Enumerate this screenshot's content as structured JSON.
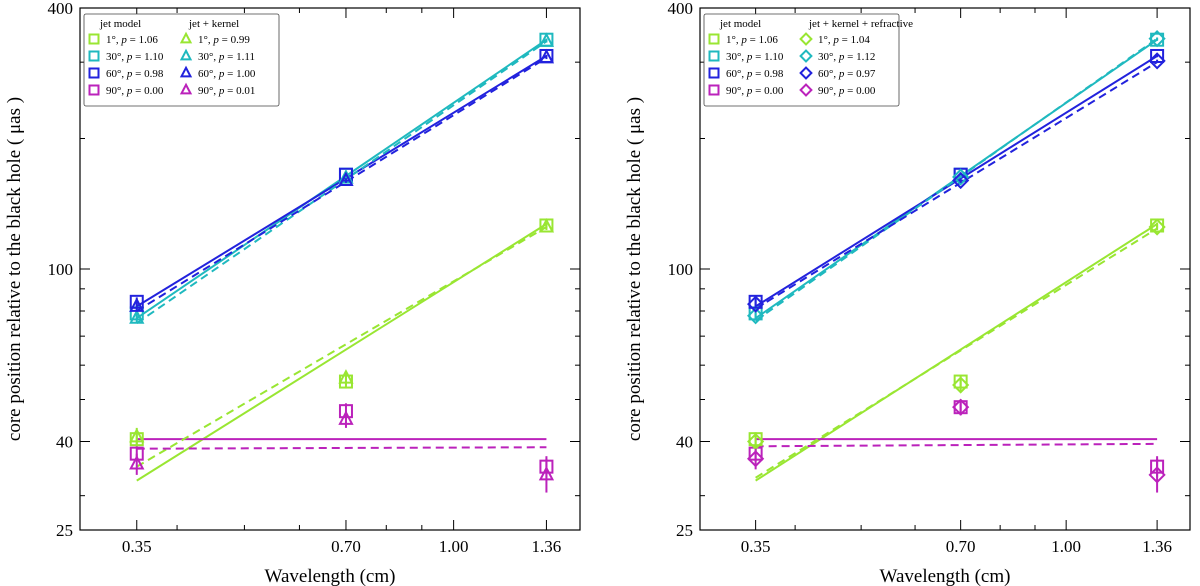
{
  "chart_data": [
    {
      "type": "line",
      "panel": "left",
      "xlabel": "Wavelength (cm)",
      "ylabel": "core position relative to the black hole ( μas )",
      "xscale": "log",
      "yscale": "log",
      "xlim": [
        0.29,
        1.52
      ],
      "ylim": [
        25,
        400
      ],
      "xticks": [
        {
          "v": 0.35,
          "label": "0.35"
        },
        {
          "v": 0.7,
          "label": "0.70"
        },
        {
          "v": 1.0,
          "label": "1.00"
        },
        {
          "v": 1.36,
          "label": "1.36"
        }
      ],
      "yticks": [
        {
          "v": 25,
          "label": "25"
        },
        {
          "v": 40,
          "label": "40"
        },
        {
          "v": 100,
          "label": "100"
        },
        {
          "v": 400,
          "label": "400"
        }
      ],
      "legend": {
        "position": "top-left",
        "col1_title": "jet model",
        "col2_title": "jet + kernel",
        "col1": [
          "1°, p = 1.06",
          "30°, p = 1.10",
          "60°, p = 0.98",
          "90°, p = 0.00"
        ],
        "col2": [
          "1°, p = 0.99",
          "30°, p = 1.11",
          "60°, p = 1.00",
          "90°, p = 0.01"
        ]
      },
      "series": [
        {
          "name": "jet model 1°",
          "color": "#99e632",
          "marker": "square",
          "line": "solid",
          "x": [
            0.35,
            0.7,
            1.36
          ],
          "y": [
            40.5,
            55,
            126
          ],
          "err": [
            1.5,
            2,
            2
          ],
          "fit": [
            [
              0.35,
              32.5
            ],
            [
              1.36,
              127
            ]
          ]
        },
        {
          "name": "jet model 30°",
          "color": "#1fb9bf",
          "marker": "square",
          "line": "solid",
          "x": [
            0.35,
            0.7,
            1.36
          ],
          "y": [
            79,
            165,
            338
          ],
          "err": [
            2,
            2,
            2
          ],
          "fit": [
            [
              0.35,
              77
            ],
            [
              1.36,
              338
            ]
          ]
        },
        {
          "name": "jet model 60°",
          "color": "#2222dd",
          "marker": "square",
          "line": "solid",
          "x": [
            0.35,
            0.7,
            1.36
          ],
          "y": [
            84,
            165,
            310
          ],
          "err": [
            2,
            2,
            2
          ],
          "fit": [
            [
              0.35,
              82
            ],
            [
              1.36,
              310
            ]
          ]
        },
        {
          "name": "jet model 90°",
          "color": "#bb22bb",
          "marker": "square",
          "line": "solid",
          "x": [
            0.35,
            0.7,
            1.36
          ],
          "y": [
            37.5,
            47,
            35
          ],
          "err": [
            1.5,
            2,
            2
          ],
          "fit": [
            [
              0.35,
              40.5
            ],
            [
              1.36,
              40.5
            ]
          ]
        },
        {
          "name": "jet + kernel 1°",
          "color": "#99e632",
          "marker": "triangle",
          "line": "dashed",
          "x": [
            0.35,
            0.7,
            1.36
          ],
          "y": [
            41,
            56,
            125
          ],
          "err": [
            2,
            2,
            2
          ],
          "fit": [
            [
              0.35,
              35
            ],
            [
              1.36,
              125
            ]
          ]
        },
        {
          "name": "jet + kernel 30°",
          "color": "#1fb9bf",
          "marker": "triangle",
          "line": "dashed",
          "x": [
            0.35,
            0.7,
            1.36
          ],
          "y": [
            77,
            162,
            335
          ],
          "err": [
            2,
            2,
            2
          ],
          "fit": [
            [
              0.35,
              75
            ],
            [
              1.36,
              335
            ]
          ]
        },
        {
          "name": "jet + kernel 60°",
          "color": "#2222dd",
          "marker": "triangle",
          "line": "dashed",
          "x": [
            0.35,
            0.7,
            1.36
          ],
          "y": [
            82,
            160,
            307
          ],
          "err": [
            2,
            2,
            2
          ],
          "fit": [
            [
              0.35,
              80
            ],
            [
              1.36,
              307
            ]
          ]
        },
        {
          "name": "jet + kernel 90°",
          "color": "#bb22bb",
          "marker": "triangle",
          "line": "dashed",
          "x": [
            0.35,
            0.7,
            1.36
          ],
          "y": [
            35.5,
            45,
            33.5
          ],
          "err": [
            2,
            2,
            3
          ],
          "fit": [
            [
              0.35,
              38.5
            ],
            [
              1.36,
              38.8
            ]
          ]
        }
      ]
    },
    {
      "type": "line",
      "panel": "right",
      "xlabel": "Wavelength (cm)",
      "ylabel": "core position relative to the black hole ( μas )",
      "xscale": "log",
      "yscale": "log",
      "xlim": [
        0.29,
        1.52
      ],
      "ylim": [
        25,
        400
      ],
      "xticks": [
        {
          "v": 0.35,
          "label": "0.35"
        },
        {
          "v": 0.7,
          "label": "0.70"
        },
        {
          "v": 1.0,
          "label": "1.00"
        },
        {
          "v": 1.36,
          "label": "1.36"
        }
      ],
      "yticks": [
        {
          "v": 25,
          "label": "25"
        },
        {
          "v": 40,
          "label": "40"
        },
        {
          "v": 100,
          "label": "100"
        },
        {
          "v": 400,
          "label": "400"
        }
      ],
      "legend": {
        "position": "top-left",
        "col1_title": "jet model",
        "col2_title": "jet + kernel + refractive",
        "col1": [
          "1°, p = 1.06",
          "30°, p = 1.10",
          "60°, p = 0.98",
          "90°, p = 0.00"
        ],
        "col2": [
          "1°, p = 1.04",
          "30°, p = 1.12",
          "60°, p = 0.97",
          "90°, p = 0.00"
        ]
      },
      "series": [
        {
          "name": "jet model 1°",
          "color": "#99e632",
          "marker": "square",
          "line": "solid",
          "x": [
            0.35,
            0.7,
            1.36
          ],
          "y": [
            40.5,
            55,
            126
          ],
          "err": [
            1.5,
            2,
            2
          ],
          "fit": [
            [
              0.35,
              32.5
            ],
            [
              1.36,
              127
            ]
          ]
        },
        {
          "name": "jet model 30°",
          "color": "#1fb9bf",
          "marker": "square",
          "line": "solid",
          "x": [
            0.35,
            0.7,
            1.36
          ],
          "y": [
            79,
            165,
            338
          ],
          "err": [
            2,
            2,
            2
          ],
          "fit": [
            [
              0.35,
              77
            ],
            [
              1.36,
              338
            ]
          ]
        },
        {
          "name": "jet model 60°",
          "color": "#2222dd",
          "marker": "square",
          "line": "solid",
          "x": [
            0.35,
            0.7,
            1.36
          ],
          "y": [
            84,
            165,
            310
          ],
          "err": [
            2,
            2,
            2
          ],
          "fit": [
            [
              0.35,
              82
            ],
            [
              1.36,
              310
            ]
          ]
        },
        {
          "name": "jet model 90°",
          "color": "#bb22bb",
          "marker": "square",
          "line": "solid",
          "x": [
            0.35,
            0.7,
            1.36
          ],
          "y": [
            37.5,
            48,
            35
          ],
          "err": [
            1.5,
            2,
            2
          ],
          "fit": [
            [
              0.35,
              40.5
            ],
            [
              1.36,
              40.5
            ]
          ]
        },
        {
          "name": "jet + kernel + refractive 1°",
          "color": "#99e632",
          "marker": "diamond",
          "line": "dashed",
          "x": [
            0.35,
            0.7,
            1.36
          ],
          "y": [
            40,
            54,
            125
          ],
          "err": [
            2,
            2,
            2
          ],
          "fit": [
            [
              0.35,
              33
            ],
            [
              1.36,
              124
            ]
          ]
        },
        {
          "name": "jet + kernel + refractive 30°",
          "color": "#1fb9bf",
          "marker": "diamond",
          "line": "dashed",
          "x": [
            0.35,
            0.7,
            1.36
          ],
          "y": [
            78,
            163,
            340
          ],
          "err": [
            2,
            2,
            2
          ],
          "fit": [
            [
              0.35,
              76
            ],
            [
              1.36,
              340
            ]
          ]
        },
        {
          "name": "jet + kernel + refractive 60°",
          "color": "#2222dd",
          "marker": "diamond",
          "line": "dashed",
          "x": [
            0.35,
            0.7,
            1.36
          ],
          "y": [
            83,
            160,
            302
          ],
          "err": [
            2,
            2,
            2
          ],
          "fit": [
            [
              0.35,
              81
            ],
            [
              1.36,
              300
            ]
          ]
        },
        {
          "name": "jet + kernel + refractive 90°",
          "color": "#bb22bb",
          "marker": "diamond",
          "line": "dashed",
          "x": [
            0.35,
            0.7,
            1.36
          ],
          "y": [
            36.5,
            48,
            33.5
          ],
          "err": [
            2,
            2,
            3
          ],
          "fit": [
            [
              0.35,
              39
            ],
            [
              1.36,
              39.5
            ]
          ]
        }
      ]
    }
  ]
}
